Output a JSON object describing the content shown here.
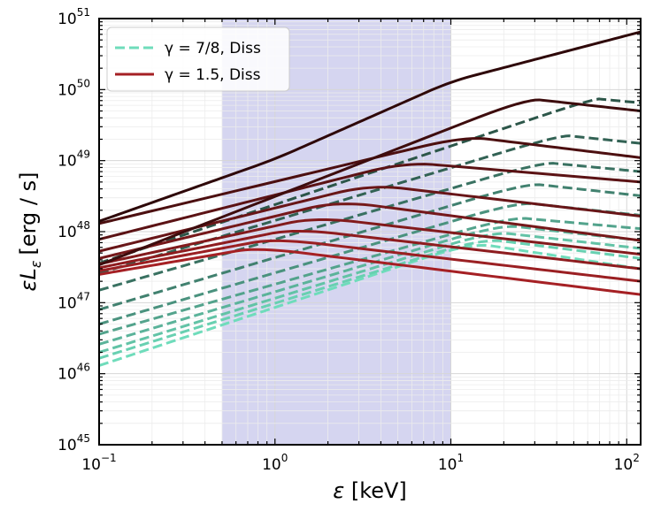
{
  "chart_data": {
    "type": "line",
    "xlabel_symbol": "ε",
    "xlabel_unit": "[keV]",
    "ylabel_symbol": "εL",
    "ylabel_sub": "ε",
    "ylabel_unit": "[erg / s]",
    "xscale": "log",
    "yscale": "log",
    "xlim": [
      0.1,
      120
    ],
    "ylim": [
      1e+45,
      1e+51
    ],
    "grid": true,
    "shaded_band": {
      "x_from": 0.5,
      "x_to": 10,
      "color": "#b9b9e6"
    },
    "legend_position": "top-left",
    "x_ticks": [
      {
        "value": 0.1,
        "base": "10",
        "exp": "−1"
      },
      {
        "value": 1,
        "base": "10",
        "exp": "0"
      },
      {
        "value": 10,
        "base": "10",
        "exp": "1"
      },
      {
        "value": 100,
        "base": "10",
        "exp": "2"
      }
    ],
    "y_ticks": [
      {
        "value": 1e+45,
        "base": "10",
        "exp": "45"
      },
      {
        "value": 1e+46,
        "base": "10",
        "exp": "46"
      },
      {
        "value": 1e+47,
        "base": "10",
        "exp": "47"
      },
      {
        "value": 1e+48,
        "base": "10",
        "exp": "48"
      },
      {
        "value": 1e+49,
        "base": "10",
        "exp": "49"
      },
      {
        "value": 1e+50,
        "base": "10",
        "exp": "50"
      },
      {
        "value": 1e+51,
        "base": "10",
        "exp": "51"
      }
    ],
    "legend": [
      {
        "label": "γ = 7/8, Diss",
        "style": "dashed",
        "color": "#6fdcbb"
      },
      {
        "label": "γ = 1.5, Diss",
        "style": "solid",
        "color": "#a52024"
      }
    ],
    "series": [
      {
        "group": "γ = 1.5, Diss",
        "style": "solid",
        "color": "#a52024",
        "x": [
          0.1,
          0.8,
          120
        ],
        "y": [
          2.5e+47,
          6e+47,
          1.3e+47
        ]
      },
      {
        "group": "γ = 1.5, Diss",
        "style": "solid",
        "color": "#9a1f22",
        "x": [
          0.1,
          1.0,
          120
        ],
        "y": [
          2.8e+47,
          8e+47,
          2e+47
        ]
      },
      {
        "group": "γ = 1.5, Diss",
        "style": "solid",
        "color": "#8e1c1f",
        "x": [
          0.1,
          1.3,
          120
        ],
        "y": [
          3.1e+47,
          1.1e+48,
          3e+47
        ]
      },
      {
        "group": "γ = 1.5, Diss",
        "style": "solid",
        "color": "#821a1c",
        "x": [
          0.1,
          1.7,
          120
        ],
        "y": [
          3.5e+47,
          1.6e+48,
          4.8e+47
        ]
      },
      {
        "group": "γ = 1.5, Diss",
        "style": "solid",
        "color": "#75181a",
        "x": [
          0.1,
          2.3,
          120
        ],
        "y": [
          4.2e+47,
          2.7e+48,
          7.5e+47
        ]
      },
      {
        "group": "γ = 1.5, Diss",
        "style": "solid",
        "color": "#681517",
        "x": [
          0.1,
          3.5,
          120
        ],
        "y": [
          5.3e+47,
          4.6e+48,
          1.65e+48
        ]
      },
      {
        "group": "γ = 1.5, Diss",
        "style": "solid",
        "color": "#5b1214",
        "x": [
          0.1,
          5.5,
          120
        ],
        "y": [
          7.8e+47,
          9.5e+48,
          5e+48
        ]
      },
      {
        "group": "γ = 1.5, Diss",
        "style": "solid",
        "color": "#4c0f10",
        "x": [
          0.1,
          12,
          120
        ],
        "y": [
          1.3e+48,
          2.2e+49,
          1.1e+49
        ]
      },
      {
        "group": "γ = 1.5, Diss",
        "style": "solid",
        "color": "#3d0c0d",
        "x": [
          0.1,
          27,
          120
        ],
        "y": [
          3.4e+47,
          7.5e+49,
          5e+49
        ]
      },
      {
        "group": "γ = 1.5, Diss",
        "style": "solid",
        "color": "#2e0809",
        "x": [
          0.1,
          1.0,
          10,
          120
        ],
        "y": [
          1.4e+48,
          1.05e+49,
          1.3e+50,
          6.5e+50
        ]
      },
      {
        "group": "γ = 7/8, Diss",
        "style": "dashed",
        "color": "#6fdcbb",
        "x": [
          0.1,
          13,
          120
        ],
        "y": [
          1.3e+46,
          7e+47,
          3e+47
        ]
      },
      {
        "group": "γ = 7/8, Diss",
        "style": "dashed",
        "color": "#68d0b1",
        "x": [
          0.1,
          15,
          120
        ],
        "y": [
          1.65e+46,
          8e+47,
          4.2e+47
        ]
      },
      {
        "group": "γ = 7/8, Diss",
        "style": "dashed",
        "color": "#62c3a6",
        "x": [
          0.1,
          17,
          120
        ],
        "y": [
          2e+46,
          1e+48,
          5.8e+47
        ]
      },
      {
        "group": "γ = 7/8, Diss",
        "style": "dashed",
        "color": "#5bb39a",
        "x": [
          0.1,
          19,
          120
        ],
        "y": [
          2.6e+46,
          1.25e+48,
          7.5e+47
        ]
      },
      {
        "group": "γ = 7/8, Diss",
        "style": "dashed",
        "color": "#53a38c",
        "x": [
          0.1,
          22,
          120
        ],
        "y": [
          3.6e+46,
          1.6e+48,
          1.1e+48
        ]
      },
      {
        "group": "γ = 7/8, Diss",
        "style": "dashed",
        "color": "#4a927e",
        "x": [
          0.1,
          24,
          120
        ],
        "y": [
          5e+46,
          2.6e+48,
          1.7e+48
        ]
      },
      {
        "group": "γ = 7/8, Diss",
        "style": "dashed",
        "color": "#41816f",
        "x": [
          0.1,
          27,
          120
        ],
        "y": [
          8e+46,
          4.8e+48,
          3.2e+48
        ]
      },
      {
        "group": "γ = 7/8, Diss",
        "style": "dashed",
        "color": "#397161",
        "x": [
          0.1,
          33,
          120
        ],
        "y": [
          1.5e+47,
          9.5e+48,
          7e+48
        ]
      },
      {
        "group": "γ = 7/8, Diss",
        "style": "dashed",
        "color": "#326254",
        "x": [
          0.1,
          42,
          120
        ],
        "y": [
          2.6e+47,
          2.3e+49,
          1.75e+49
        ]
      },
      {
        "group": "γ = 7/8, Diss",
        "style": "dashed",
        "color": "#2c5649",
        "x": [
          0.1,
          65,
          120
        ],
        "y": [
          3.6e+47,
          7.5e+49,
          6.5e+49
        ]
      }
    ]
  }
}
